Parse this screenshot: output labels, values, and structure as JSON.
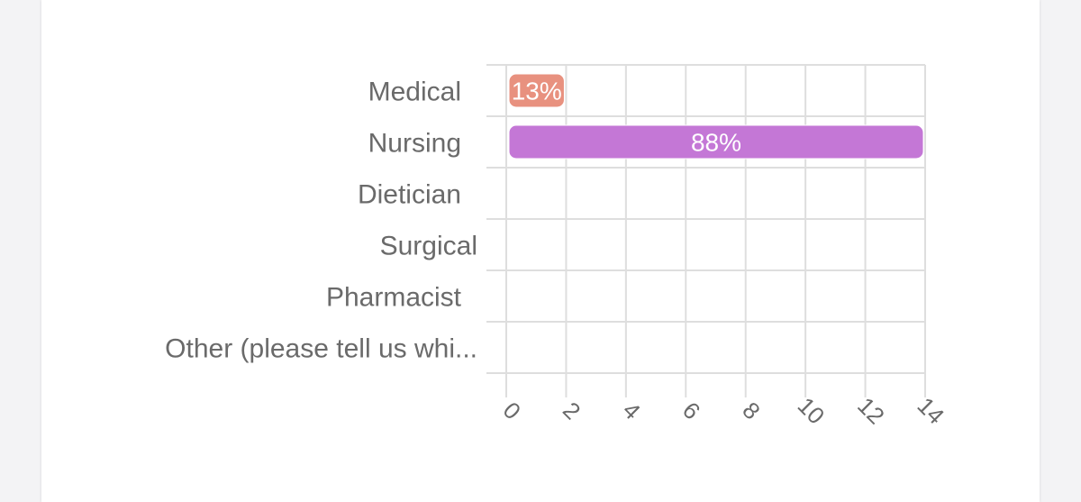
{
  "chart_data": {
    "type": "bar",
    "orientation": "horizontal",
    "title": "",
    "xlabel": "",
    "ylabel": "",
    "categories": [
      "Medical",
      "Nursing",
      "Dietician",
      "Surgical",
      "Pharmacist",
      "Other (please tell us whi..."
    ],
    "values": [
      2,
      14,
      0,
      0,
      0,
      0
    ],
    "data_labels": [
      "13%",
      "88%",
      "",
      "",
      "",
      ""
    ],
    "xlim": [
      0,
      14
    ],
    "xticks": [
      "0",
      "2",
      "4",
      "6",
      "8",
      "10",
      "12",
      "14"
    ],
    "grid": true,
    "colors": {
      "bars": [
        "#e8917f",
        "#c477d6",
        "#c477d6",
        "#c477d6",
        "#c477d6",
        "#c477d6"
      ],
      "grid": "#dedede",
      "label_text": "#6a6a6a",
      "data_label_text": "#ffffff"
    }
  }
}
